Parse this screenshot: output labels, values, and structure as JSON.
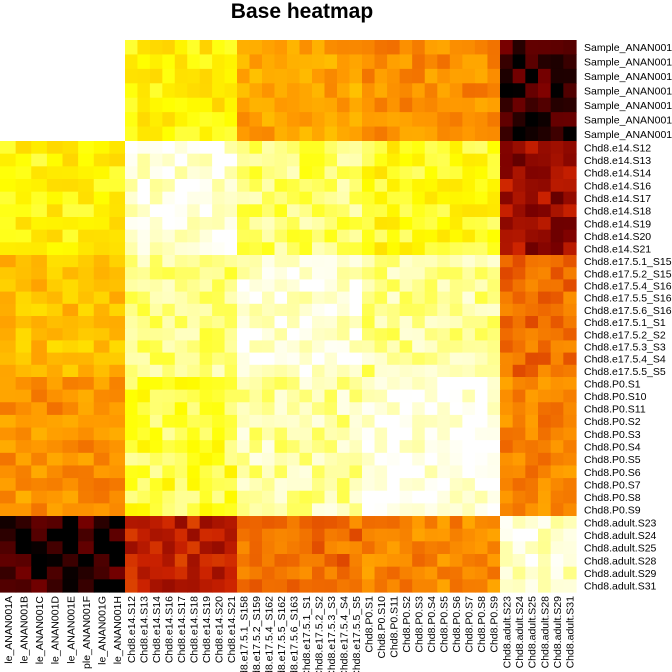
{
  "chart_data": {
    "type": "heatmap",
    "title": "Base heatmap",
    "color_scale": [
      "#000000",
      "#7a0000",
      "#cc2200",
      "#ee6600",
      "#ff9a00",
      "#ffc800",
      "#ffff00",
      "#ffff99",
      "#ffffff"
    ],
    "color_scale_note": "values 0 (black, least similar) to 1 (white, most similar)",
    "row_labels": [
      "Sample_ANAN001",
      "Sample_ANAN001",
      "Sample_ANAN001",
      "Sample_ANAN001",
      "Sample_ANAN001",
      "Sample_ANAN001",
      "Sample_ANAN001",
      "Chd8.e14.S12",
      "Chd8.e14.S13",
      "Chd8.e14.S14",
      "Chd8.e14.S16",
      "Chd8.e14.S17",
      "Chd8.e14.S18",
      "Chd8.e14.S19",
      "Chd8.e14.S20",
      "Chd8.e14.S21",
      "Chd8.e17.5.1_S15",
      "Chd8.e17.5.2_S15",
      "Chd8.e17.5.4_S16",
      "Chd8.e17.5.5_S16",
      "Chd8.e17.5.6_S16",
      "Chd8.e17.5.1_S1",
      "Chd8.e17.5.2_S2",
      "Chd8.e17.5.3_S3",
      "Chd8.e17.5.4_S4",
      "Chd8.e17.5.5_S5",
      "Chd8.P0.S1",
      "Chd8.P0.S10",
      "Chd8.P0.S11",
      "Chd8.P0.S2",
      "Chd8.P0.S3",
      "Chd8.P0.S4",
      "Chd8.P0.S5",
      "Chd8.P0.S6",
      "Chd8.P0.S7",
      "Chd8.P0.S8",
      "Chd8.P0.S9",
      "Chd8.adult.S23",
      "Chd8.adult.S24",
      "Chd8.adult.S25",
      "Chd8.adult.S28",
      "Chd8.adult.S29",
      "Chd8.adult.S31"
    ],
    "col_labels": [
      "le_ANAN001A",
      "le_ANAN001B",
      "le_ANAN001C",
      "le_ANAN001D",
      "le_ANAN001E",
      "ple_ANAN001F",
      "le_ANAN001G",
      "le_ANAN001H",
      "Chd8.e14.S12",
      "Chd8.e14.S13",
      "Chd8.e14.S14",
      "Chd8.e14.S16",
      "Chd8.e14.S17",
      "Chd8.e14.S18",
      "Chd8.e14.S19",
      "Chd8.e14.S20",
      "Chd8.e14.S21",
      "Chd8.e17.5.1_S158",
      "d8.e17.5.2_S159",
      "d8.e17.5.4_S162",
      "d8.e17.5.5_S162",
      "d8.e17.5.6_S163",
      "Chd8.e17.5.1_S1",
      "Chd8.e17.5.2_S2",
      "Chd8.e17.5.3_S3",
      "Chd8.e17.5.4_S4",
      "Chd8.e17.5.5_S5",
      "Chd8.P0.S1",
      "Chd8.P0.S10",
      "Chd8.P0.S11",
      "Chd8.P0.S2",
      "Chd8.P0.S3",
      "Chd8.P0.S4",
      "Chd8.P0.S5",
      "Chd8.P0.S6",
      "Chd8.P0.S7",
      "Chd8.P0.S8",
      "Chd8.P0.S9",
      "Chd8.adult.S23",
      "Chd8.adult.S24",
      "Chd8.adult.S25",
      "Chd8.adult.S28",
      "Chd8.adult.S29",
      "Chd8.adult.S31"
    ],
    "row_groups": [
      {
        "group": "Sample",
        "rows": [
          0,
          6
        ]
      },
      {
        "group": "e14",
        "rows": [
          7,
          15
        ]
      },
      {
        "group": "e17.5",
        "rows": [
          16,
          25
        ]
      },
      {
        "group": "P0",
        "rows": [
          26,
          36
        ]
      },
      {
        "group": "adult",
        "rows": [
          37,
          42
        ]
      }
    ],
    "col_groups": [
      {
        "group": "Sample",
        "cols": [
          0,
          7
        ]
      },
      {
        "group": "e14",
        "cols": [
          8,
          16
        ]
      },
      {
        "group": "e17.5",
        "cols": [
          17,
          26
        ]
      },
      {
        "group": "P0",
        "cols": [
          27,
          37
        ]
      },
      {
        "group": "adult",
        "cols": [
          38,
          43
        ]
      }
    ],
    "block_values": [
      [
        null,
        0.72,
        0.53,
        0.47,
        0.06
      ],
      [
        0.73,
        0.95,
        0.84,
        0.76,
        0.18
      ],
      [
        0.6,
        0.86,
        0.95,
        0.88,
        0.4
      ],
      [
        0.48,
        0.8,
        0.89,
        0.97,
        0.45
      ],
      [
        0.04,
        0.24,
        0.4,
        0.45,
        0.94
      ]
    ],
    "block_values_note": "approximate mean value of each row-group x column-group block (rows: Sample, e14, e17.5, P0, adult; columns same order); Sample x Sample block is blank in the image"
  }
}
